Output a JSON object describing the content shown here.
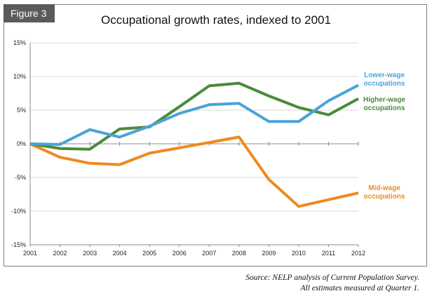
{
  "figure_label": "Figure 3",
  "source_line1": "Source: NELP analysis of Current Population Survey.",
  "source_line2": "All estimates measured at Quarter 1.",
  "chart_data": {
    "type": "line",
    "title": "Occupational growth rates, indexed to 2001",
    "xlabel": "",
    "ylabel": "",
    "x": [
      "2001",
      "2002",
      "2003",
      "2004",
      "2005",
      "2006",
      "2007",
      "2008",
      "2009",
      "2010",
      "2011",
      "2012"
    ],
    "ylim": [
      -15,
      15
    ],
    "yticks": [
      15,
      10,
      5,
      0,
      -5,
      -10,
      -15
    ],
    "ytick_labels": [
      "15%",
      "10%",
      "5%",
      "0%",
      "-5%",
      "-10%",
      "-15%"
    ],
    "grid": "horizontal",
    "series": [
      {
        "name": "Lower-wage occupations",
        "label_lines": [
          "Lower-wage",
          "occupations"
        ],
        "color": "#4aa3d8",
        "values": [
          0,
          -0.1,
          2.1,
          1.0,
          2.6,
          4.5,
          5.8,
          6.0,
          3.3,
          3.3,
          6.4,
          8.7
        ]
      },
      {
        "name": "Higher-wage occupations",
        "label_lines": [
          "Higher-wage",
          "occupations"
        ],
        "color": "#4a8a3c",
        "values": [
          0,
          -0.7,
          -0.8,
          2.2,
          2.5,
          5.5,
          8.6,
          9.0,
          7.1,
          5.4,
          4.3,
          6.7
        ]
      },
      {
        "name": "Mid-wage occupations",
        "label_lines": [
          "Mid-wage",
          "occupations"
        ],
        "color": "#ee8a1f",
        "values": [
          0,
          -2.0,
          -2.9,
          -3.1,
          -1.4,
          -0.6,
          0.2,
          1.0,
          -5.3,
          -9.3,
          -8.3,
          -7.3
        ]
      }
    ]
  }
}
